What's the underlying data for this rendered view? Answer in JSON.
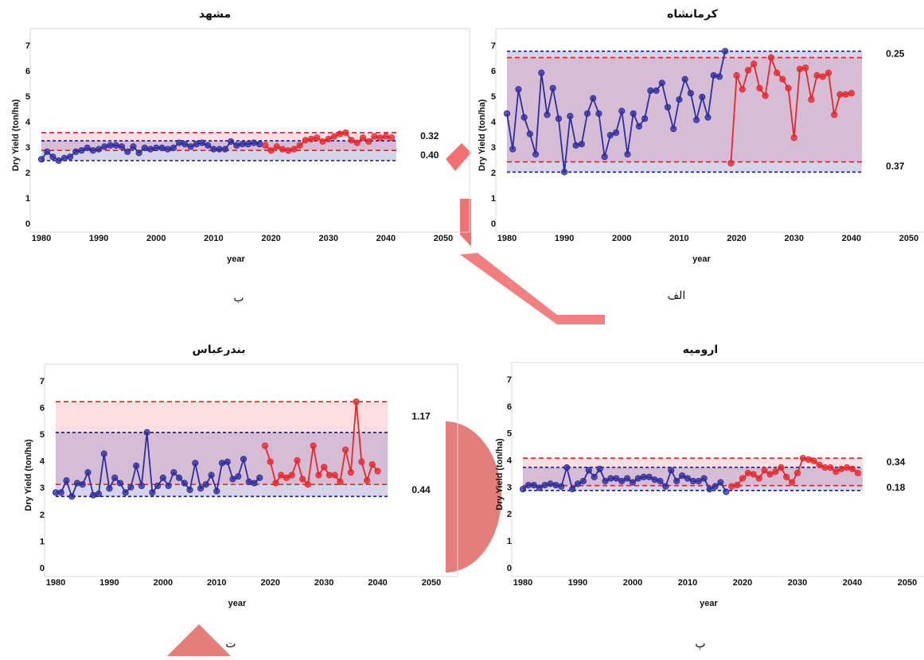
{
  "chart_data": [
    {
      "type": "line",
      "title": "مشهد",
      "subplot_label": "ب",
      "x_label": "year",
      "y_label": "Dry Yield (ton/ha)",
      "x": [
        1980,
        1981,
        1982,
        1983,
        1984,
        1985,
        1986,
        1987,
        1988,
        1989,
        1990,
        1991,
        1992,
        1993,
        1994,
        1995,
        1996,
        1997,
        1998,
        1999,
        2000,
        2001,
        2002,
        2003,
        2004,
        2005,
        2006,
        2007,
        2008,
        2009,
        2010,
        2011,
        2012,
        2013,
        2014,
        2015,
        2016,
        2017,
        2018,
        2019,
        2020,
        2021,
        2022,
        2023,
        2024,
        2025,
        2026,
        2027,
        2028,
        2029,
        2030,
        2031,
        2032,
        2033,
        2034,
        2035,
        2036,
        2037,
        2038,
        2039,
        2040,
        2041
      ],
      "xlim": [
        1980,
        2050
      ],
      "xticks": [
        1980,
        1990,
        2000,
        2010,
        2020,
        2030,
        2040,
        2050
      ],
      "ylim": [
        0,
        7
      ],
      "yticks": [
        0,
        1,
        2,
        3,
        4,
        5,
        6,
        7
      ],
      "grid": false,
      "series": [
        {
          "color": "#2e2e9c",
          "values": [
            2.55,
            2.85,
            2.65,
            2.5,
            2.6,
            2.65,
            2.85,
            2.9,
            3.0,
            2.9,
            2.95,
            3.05,
            3.1,
            3.1,
            3.05,
            2.85,
            3.05,
            2.8,
            3.0,
            2.95,
            3.0,
            3.0,
            2.95,
            3.0,
            3.2,
            3.15,
            3.05,
            3.15,
            3.2,
            3.1,
            2.95,
            2.95,
            2.95,
            3.25,
            3.1,
            3.15,
            3.15,
            3.2,
            3.15,
            null,
            null,
            null,
            null,
            null,
            null,
            null,
            null,
            null,
            null,
            null,
            null,
            null,
            null,
            null,
            null,
            null,
            null,
            null,
            null,
            null,
            null,
            null
          ]
        },
        {
          "color": "#e8262a",
          "values": [
            null,
            null,
            null,
            null,
            null,
            null,
            null,
            null,
            null,
            null,
            null,
            null,
            null,
            null,
            null,
            null,
            null,
            null,
            null,
            null,
            null,
            null,
            null,
            null,
            null,
            null,
            null,
            null,
            null,
            null,
            null,
            null,
            null,
            null,
            null,
            null,
            null,
            null,
            null,
            3.1,
            2.9,
            3.05,
            2.95,
            2.9,
            2.95,
            3.1,
            3.3,
            3.35,
            3.4,
            3.25,
            3.35,
            3.45,
            3.55,
            3.6,
            3.3,
            3.2,
            3.4,
            3.25,
            3.45,
            3.4,
            3.45,
            3.4
          ]
        }
      ],
      "observed_range": [
        2.5,
        3.28
      ],
      "observed_color": "#1a1a8c",
      "projected_range": [
        2.9,
        3.6
      ],
      "projected_color": "#e02020",
      "range_annotations": [
        "0.32",
        "0.40"
      ]
    },
    {
      "type": "line",
      "title": "کرمانشاه",
      "subplot_label": "الف",
      "x_label": "year",
      "y_label": "Dry Yield (ton/ha)",
      "x": [
        1980,
        1981,
        1982,
        1983,
        1984,
        1985,
        1986,
        1987,
        1988,
        1989,
        1990,
        1991,
        1992,
        1993,
        1994,
        1995,
        1996,
        1997,
        1998,
        1999,
        2000,
        2001,
        2002,
        2003,
        2004,
        2005,
        2006,
        2007,
        2008,
        2009,
        2010,
        2011,
        2012,
        2013,
        2014,
        2015,
        2016,
        2017,
        2018,
        2019,
        2020,
        2021,
        2022,
        2023,
        2024,
        2025,
        2026,
        2027,
        2028,
        2029,
        2030,
        2031,
        2032,
        2033,
        2034,
        2035,
        2036,
        2037,
        2038,
        2039,
        2040,
        2041
      ],
      "xlim": [
        1980,
        2050
      ],
      "xticks": [
        1980,
        1990,
        2000,
        2010,
        2020,
        2030,
        2040,
        2050
      ],
      "ylim": [
        0,
        7
      ],
      "yticks": [
        0,
        1,
        2,
        3,
        4,
        5,
        6,
        7
      ],
      "grid": false,
      "series": [
        {
          "color": "#2e2e9c",
          "values": [
            4.35,
            2.95,
            5.3,
            4.2,
            3.55,
            2.75,
            5.95,
            4.3,
            5.35,
            4.15,
            2.05,
            4.25,
            3.1,
            3.15,
            4.35,
            4.95,
            4.35,
            2.65,
            3.5,
            3.6,
            4.45,
            2.75,
            4.35,
            3.85,
            4.15,
            5.25,
            5.25,
            5.55,
            4.6,
            3.75,
            4.9,
            5.7,
            5.15,
            4.1,
            5.0,
            4.2,
            5.85,
            5.8,
            6.8,
            null,
            null,
            null,
            null,
            null,
            null,
            null,
            null,
            null,
            null,
            null,
            null,
            null,
            null,
            null,
            null,
            null,
            null,
            null,
            null,
            null,
            null,
            null
          ]
        },
        {
          "color": "#e8262a",
          "values": [
            null,
            null,
            null,
            null,
            null,
            null,
            null,
            null,
            null,
            null,
            null,
            null,
            null,
            null,
            null,
            null,
            null,
            null,
            null,
            null,
            null,
            null,
            null,
            null,
            null,
            null,
            null,
            null,
            null,
            null,
            null,
            null,
            null,
            null,
            null,
            null,
            null,
            null,
            null,
            2.4,
            5.85,
            5.3,
            6.05,
            6.3,
            5.35,
            5.05,
            6.55,
            5.95,
            5.7,
            5.35,
            3.4,
            6.1,
            6.15,
            4.9,
            5.85,
            5.8,
            5.95,
            4.3,
            5.1,
            5.1,
            5.15,
            null
          ]
        }
      ],
      "observed_range": [
        2.05,
        6.8
      ],
      "observed_color": "#1a1a8c",
      "projected_range": [
        2.45,
        6.55
      ],
      "projected_color": "#e02020",
      "range_annotations": [
        "0.25",
        "0.37"
      ]
    },
    {
      "type": "line",
      "title": "بندرعباس",
      "subplot_label": "ت",
      "x_label": "year",
      "y_label": "Dry Yield (ton/ha)",
      "x": [
        1980,
        1981,
        1982,
        1983,
        1984,
        1985,
        1986,
        1987,
        1988,
        1989,
        1990,
        1991,
        1992,
        1993,
        1994,
        1995,
        1996,
        1997,
        1998,
        1999,
        2000,
        2001,
        2002,
        2003,
        2004,
        2005,
        2006,
        2007,
        2008,
        2009,
        2010,
        2011,
        2012,
        2013,
        2014,
        2015,
        2016,
        2017,
        2018,
        2019,
        2020,
        2021,
        2022,
        2023,
        2024,
        2025,
        2026,
        2027,
        2028,
        2029,
        2030,
        2031,
        2032,
        2033,
        2034,
        2035,
        2036,
        2037,
        2038,
        2039,
        2040,
        2041
      ],
      "xlim": [
        1980,
        2050
      ],
      "xticks": [
        1980,
        1990,
        2000,
        2010,
        2020,
        2030,
        2040,
        2050
      ],
      "ylim": [
        0,
        7
      ],
      "yticks": [
        0,
        1,
        2,
        3,
        4,
        5,
        6,
        7
      ],
      "grid": false,
      "series": [
        {
          "color": "#2e2e9c",
          "values": [
            2.85,
            2.85,
            3.3,
            2.7,
            3.2,
            3.15,
            3.6,
            2.75,
            2.8,
            4.3,
            3.0,
            3.4,
            3.2,
            2.85,
            3.05,
            3.85,
            3.1,
            5.1,
            2.85,
            3.1,
            3.4,
            3.1,
            3.6,
            3.4,
            3.2,
            2.95,
            3.95,
            3.0,
            3.15,
            3.5,
            2.9,
            3.95,
            4.0,
            3.35,
            3.45,
            4.1,
            3.25,
            3.2,
            3.4,
            null,
            null,
            null,
            null,
            null,
            null,
            null,
            null,
            null,
            null,
            null,
            null,
            null,
            null,
            null,
            null,
            null,
            null,
            null,
            null,
            null,
            null,
            null
          ]
        },
        {
          "color": "#e8262a",
          "values": [
            null,
            null,
            null,
            null,
            null,
            null,
            null,
            null,
            null,
            null,
            null,
            null,
            null,
            null,
            null,
            null,
            null,
            null,
            null,
            null,
            null,
            null,
            null,
            null,
            null,
            null,
            null,
            null,
            null,
            null,
            null,
            null,
            null,
            null,
            null,
            null,
            null,
            null,
            null,
            4.6,
            4.0,
            3.2,
            3.5,
            3.4,
            3.5,
            4.05,
            3.35,
            3.15,
            4.6,
            3.5,
            3.8,
            3.5,
            3.5,
            3.25,
            4.45,
            3.6,
            6.25,
            4.0,
            3.3,
            3.9,
            3.65,
            null
          ]
        }
      ],
      "observed_range": [
        2.7,
        5.1
      ],
      "observed_color": "#1a1a8c",
      "projected_range": [
        3.15,
        6.25
      ],
      "projected_color": "#e02020",
      "range_annotations": [
        "1.17",
        "0.44"
      ]
    },
    {
      "type": "line",
      "title": "ارومیه",
      "subplot_label": "پ",
      "x_label": "year",
      "y_label": "Dry Yield (ton/ha)",
      "x": [
        1980,
        1981,
        1982,
        1983,
        1984,
        1985,
        1986,
        1987,
        1988,
        1989,
        1990,
        1991,
        1992,
        1993,
        1994,
        1995,
        1996,
        1997,
        1998,
        1999,
        2000,
        2001,
        2002,
        2003,
        2004,
        2005,
        2006,
        2007,
        2008,
        2009,
        2010,
        2011,
        2012,
        2013,
        2014,
        2015,
        2016,
        2017,
        2018,
        2019,
        2020,
        2021,
        2022,
        2023,
        2024,
        2025,
        2026,
        2027,
        2028,
        2029,
        2030,
        2031,
        2032,
        2033,
        2034,
        2035,
        2036,
        2037,
        2038,
        2039,
        2040,
        2041
      ],
      "xlim": [
        1980,
        2050
      ],
      "xticks": [
        1980,
        1990,
        2000,
        2010,
        2020,
        2030,
        2040,
        2050
      ],
      "ylim": [
        0,
        7
      ],
      "yticks": [
        0,
        1,
        2,
        3,
        4,
        5,
        6,
        7
      ],
      "grid": false,
      "series": [
        {
          "color": "#2e2e9c",
          "values": [
            2.95,
            3.1,
            3.1,
            3.0,
            3.1,
            3.15,
            3.1,
            3.05,
            3.75,
            2.95,
            3.15,
            3.25,
            3.65,
            3.4,
            3.7,
            3.25,
            3.35,
            3.35,
            3.25,
            3.35,
            3.2,
            3.35,
            3.4,
            3.4,
            3.3,
            3.25,
            3.05,
            3.65,
            3.25,
            3.45,
            3.35,
            3.25,
            3.25,
            3.35,
            2.95,
            3.05,
            3.2,
            2.85,
            null,
            null,
            null,
            null,
            null,
            null,
            null,
            null,
            null,
            null,
            null,
            null,
            null,
            null,
            null,
            null,
            null,
            null,
            null,
            null,
            null,
            null,
            null,
            null
          ]
        },
        {
          "color": "#e8262a",
          "values": [
            null,
            null,
            null,
            null,
            null,
            null,
            null,
            null,
            null,
            null,
            null,
            null,
            null,
            null,
            null,
            null,
            null,
            null,
            null,
            null,
            null,
            null,
            null,
            null,
            null,
            null,
            null,
            null,
            null,
            null,
            null,
            null,
            null,
            null,
            null,
            null,
            null,
            null,
            3.05,
            3.1,
            3.35,
            3.55,
            3.5,
            3.35,
            3.65,
            3.5,
            3.6,
            3.75,
            3.4,
            3.2,
            3.55,
            4.1,
            4.05,
            4.0,
            3.85,
            3.75,
            3.75,
            3.6,
            3.7,
            3.75,
            3.7,
            3.55
          ]
        }
      ],
      "observed_range": [
        2.9,
        3.76
      ],
      "observed_color": "#1a1a8c",
      "projected_range": [
        3.08,
        4.1
      ],
      "projected_color": "#e02020",
      "range_annotations": [
        "0.34",
        "0.18"
      ]
    }
  ]
}
